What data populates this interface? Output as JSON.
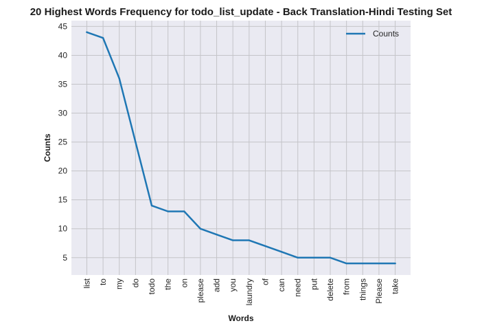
{
  "chart_data": {
    "type": "line",
    "title": "20 Highest Words Frequency for todo_list_update - Back Translation-Hindi Testing Set",
    "xlabel": "Words",
    "ylabel": "Counts",
    "categories": [
      "list",
      "to",
      "my",
      "do",
      "todo",
      "the",
      "on",
      "please",
      "add",
      "you",
      "laundry",
      "of",
      "can",
      "need",
      "put",
      "delete",
      "from",
      "things",
      "Please",
      "take"
    ],
    "series": [
      {
        "name": "Counts",
        "values": [
          44,
          43,
          36,
          25,
          14,
          13,
          13,
          10,
          9,
          8,
          8,
          7,
          6,
          5,
          5,
          5,
          4,
          4,
          4,
          4
        ]
      }
    ],
    "ylim": [
      2.0,
      46.0
    ],
    "yticks": [
      5,
      10,
      15,
      20,
      25,
      30,
      35,
      40,
      45
    ],
    "grid": true,
    "legend": "top-right",
    "colors": {
      "line": "#1f77b4",
      "plot_bg": "#eaeaf2",
      "grid": "#c4c4c8"
    }
  }
}
